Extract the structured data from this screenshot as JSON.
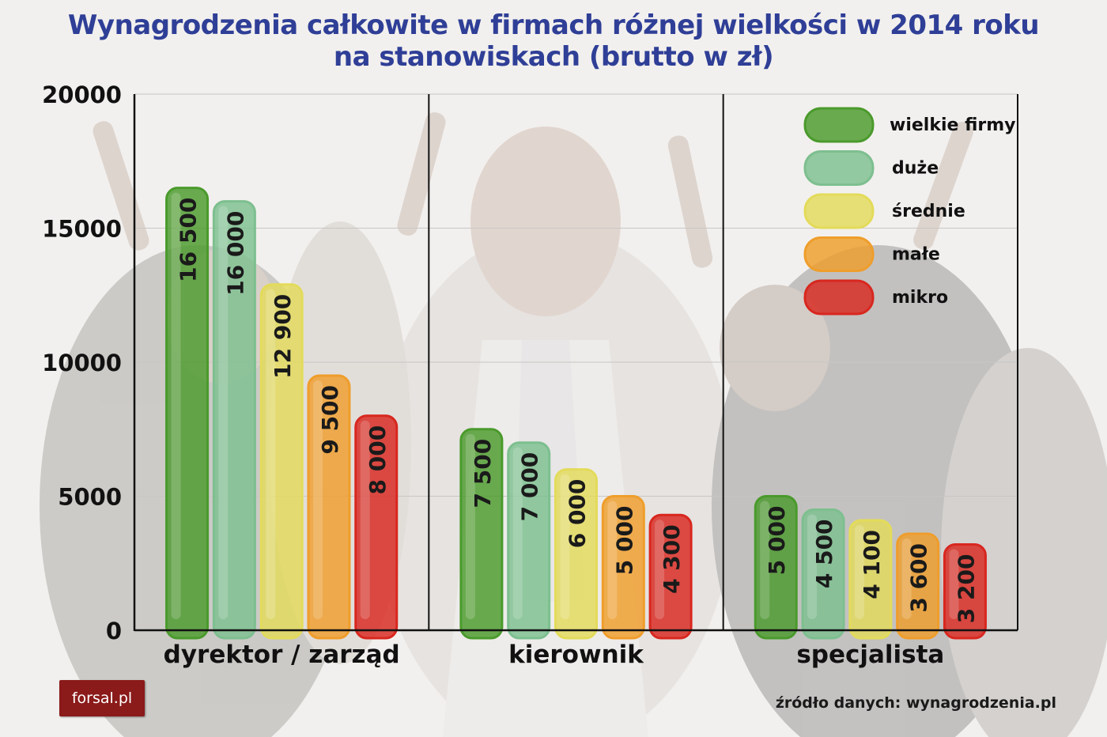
{
  "title_line1": "Wynagrodzenia całkowite w firmach różnej wielkości w 2014 roku",
  "title_line2": "na stanowiskach (brutto w zł)",
  "logo_text": "forsal.pl",
  "source": "źródło danych: wynagrodzenia.pl",
  "chart_data": {
    "type": "bar",
    "categories": [
      "dyrektor / zarząd",
      "kierownik",
      "specjalista"
    ],
    "series": [
      {
        "name": "wielkie firmy",
        "values": [
          16500,
          7500,
          5000
        ],
        "labels": [
          "16 500",
          "7 500",
          "5 000"
        ],
        "color": "#4a9a2c"
      },
      {
        "name": "duże",
        "values": [
          16000,
          7000,
          4500
        ],
        "labels": [
          "16 000",
          "7 000",
          "4 500"
        ],
        "color": "#7dbf8f"
      },
      {
        "name": "średnie",
        "values": [
          12900,
          6000,
          4100
        ],
        "labels": [
          "12 900",
          "6 000",
          "4 100"
        ],
        "color": "#e3db5a"
      },
      {
        "name": "małe",
        "values": [
          9500,
          5000,
          3600
        ],
        "labels": [
          "9 500",
          "5 000",
          "3 600"
        ],
        "color": "#ef9d2b"
      },
      {
        "name": "mikro",
        "values": [
          8000,
          4300,
          3200
        ],
        "labels": [
          "8 000",
          "4 300",
          "3 200"
        ],
        "color": "#d8271f"
      }
    ],
    "yticks": [
      0,
      5000,
      10000,
      15000,
      20000
    ],
    "ylim": [
      0,
      20000
    ],
    "grid": true,
    "legend_position": "top-right"
  }
}
